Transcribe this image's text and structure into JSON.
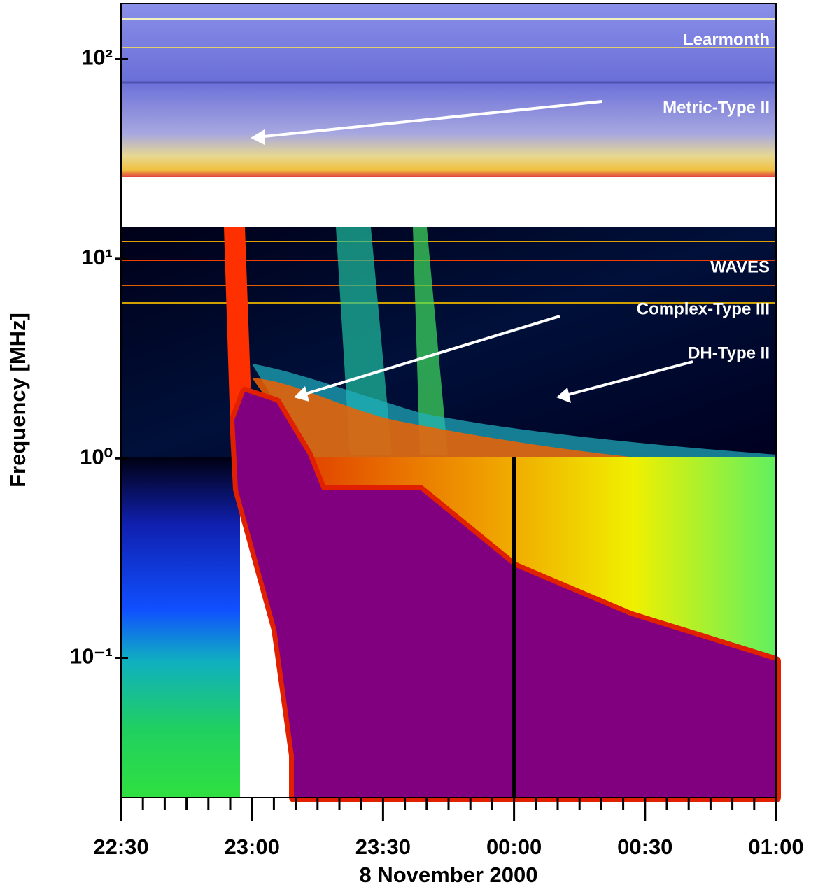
{
  "chart_data": {
    "type": "spectrogram",
    "xlabel": "8 November 2000",
    "ylabel": "Frequency [MHz]",
    "log_y": true,
    "xlim": [
      1350,
      1500
    ],
    "xticks": [
      {
        "value": 1350,
        "label": "22:30"
      },
      {
        "value": 1380,
        "label": "23:00"
      },
      {
        "value": 1410,
        "label": "23:30"
      },
      {
        "value": 1440,
        "label": "00:00"
      },
      {
        "value": 1470,
        "label": "00:30"
      },
      {
        "value": 1500,
        "label": "01:00"
      }
    ],
    "xminorticks": [
      1355,
      1360,
      1365,
      1370,
      1375,
      1385,
      1390,
      1395,
      1400,
      1405,
      1415,
      1420,
      1425,
      1430,
      1435,
      1445,
      1450,
      1455,
      1460,
      1465,
      1475,
      1480,
      1485,
      1490,
      1495
    ],
    "ylim": [
      0.02,
      190
    ],
    "yticks": [
      {
        "value": 0.1,
        "label": "10⁻¹"
      },
      {
        "value": 1,
        "label": "10⁰"
      },
      {
        "value": 10,
        "label": "10¹"
      },
      {
        "value": 100,
        "label": "10²"
      }
    ],
    "annotations": [
      "Learmonth",
      "Metric-Type II",
      "WAVES",
      "Complex-Type III",
      "DH-Type II"
    ]
  }
}
